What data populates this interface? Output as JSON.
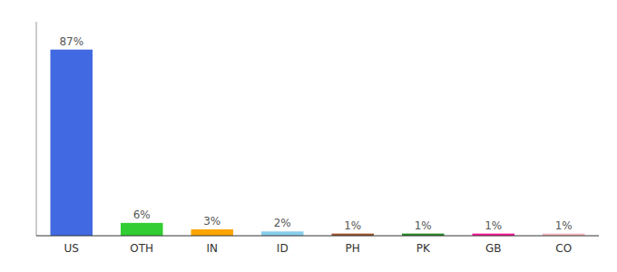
{
  "chart_data": {
    "type": "bar",
    "categories": [
      "US",
      "OTH",
      "IN",
      "ID",
      "PH",
      "PK",
      "GB",
      "CO"
    ],
    "values": [
      87,
      6,
      3,
      2,
      1,
      1,
      1,
      1
    ],
    "value_labels": [
      "87%",
      "6%",
      "3%",
      "2%",
      "1%",
      "1%",
      "1%",
      "1%"
    ],
    "colors": [
      "#4169E1",
      "#32CD32",
      "#FFA500",
      "#87CEEB",
      "#A0522D",
      "#228B22",
      "#FF1493",
      "#FFB6C1"
    ],
    "ylim": [
      0,
      100
    ],
    "data_labels": true,
    "tick_labels": "x"
  }
}
